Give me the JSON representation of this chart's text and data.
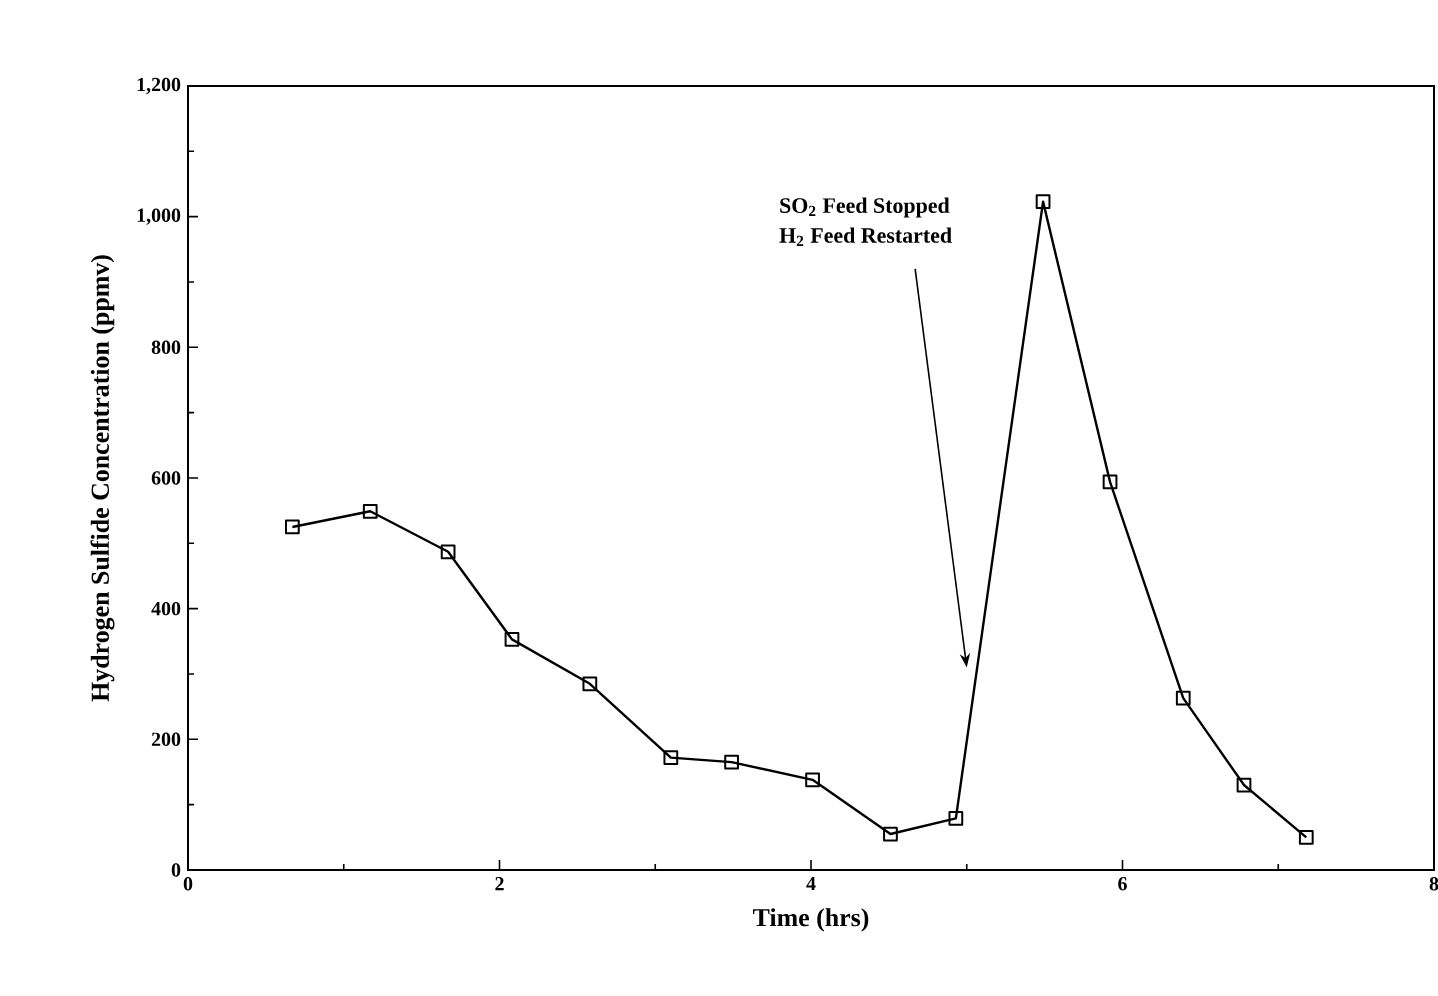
{
  "chart_data": {
    "type": "line",
    "xlabel": "Time (hrs)",
    "ylabel": "Hydrogen Sulfide Concentration (ppmv)",
    "x": [
      0.67,
      1.17,
      1.67,
      2.08,
      2.58,
      3.1,
      3.49,
      4.01,
      4.51,
      4.93,
      5.49,
      5.92,
      6.39,
      6.78,
      7.18
    ],
    "series": [
      {
        "color": "#000000",
        "values": [
          525,
          549,
          487,
          353,
          285,
          172,
          165,
          138,
          55,
          79,
          1023,
          594,
          263,
          130,
          50
        ]
      }
    ],
    "xlim": [
      0,
      8
    ],
    "xticks": [
      0,
      2,
      4,
      6,
      8
    ],
    "ylim": [
      0,
      1200
    ],
    "yticks": [
      0,
      200,
      400,
      600,
      800,
      {
        "value": 1000,
        "label": "1,000"
      },
      {
        "value": 1200,
        "label": "1,200"
      }
    ],
    "marker": "square",
    "line_style": "solid",
    "grid": false,
    "legend": false,
    "annotations": [
      "SO$_{2}$ Feed Stopped",
      {
        "text": "H$_{2}$ Feed Restarted",
        "x": 5.0,
        "y": 310
      }
    ]
  }
}
